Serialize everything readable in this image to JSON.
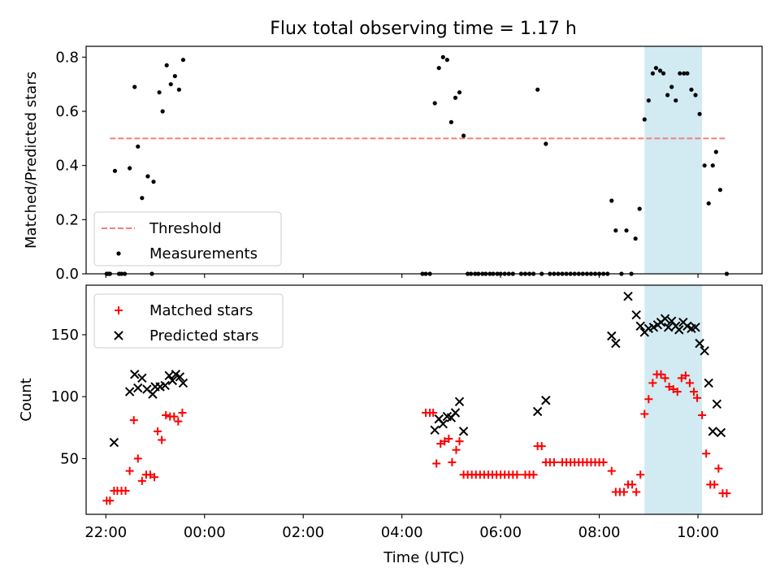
{
  "figure": {
    "title": "Flux total observing time = 1.17 h"
  },
  "chart_data": [
    {
      "type": "scatter",
      "title": "Flux total observing time = 1.17 h",
      "xlabel": "",
      "ylabel": "Matched/Predicted stars",
      "xlim": [
        21.6,
        11.3
      ],
      "ylim": [
        0.0,
        0.84
      ],
      "yticks": [
        0.0,
        0.2,
        0.4,
        0.6,
        0.8
      ],
      "ytick_labels": [
        "0.0",
        "0.2",
        "0.4",
        "0.6",
        "0.8"
      ],
      "legend_position": "lower-left",
      "highlight_span": {
        "x": [
          "08:55",
          "10:05"
        ],
        "color": "#add8e6"
      },
      "series": [
        {
          "name": "Threshold",
          "style": "dashed-line",
          "color": "#f08080",
          "x": [
            "22:05",
            "10:35"
          ],
          "y": [
            0.5,
            0.5
          ]
        },
        {
          "name": "Measurements",
          "style": "dot",
          "color": "#000000",
          "points": [
            [
              "22:01",
              0.0
            ],
            [
              "22:03",
              0.0
            ],
            [
              "22:05",
              0.0
            ],
            [
              "22:11",
              0.38
            ],
            [
              "22:16",
              0.0
            ],
            [
              "22:19",
              0.0
            ],
            [
              "22:23",
              0.0
            ],
            [
              "22:29",
              0.39
            ],
            [
              "22:35",
              0.69
            ],
            [
              "22:39",
              0.47
            ],
            [
              "22:44",
              0.28
            ],
            [
              "22:51",
              0.36
            ],
            [
              "22:56",
              0.0
            ],
            [
              "22:58",
              0.34
            ],
            [
              "23:05",
              0.67
            ],
            [
              "23:09",
              0.6
            ],
            [
              "23:14",
              0.77
            ],
            [
              "23:19",
              0.7
            ],
            [
              "23:24",
              0.73
            ],
            [
              "23:29",
              0.68
            ],
            [
              "23:34",
              0.79
            ],
            [
              "04:25",
              0.0
            ],
            [
              "04:29",
              0.0
            ],
            [
              "04:34",
              0.0
            ],
            [
              "04:40",
              0.63
            ],
            [
              "04:45",
              0.76
            ],
            [
              "04:50",
              0.8
            ],
            [
              "04:55",
              0.79
            ],
            [
              "05:00",
              0.56
            ],
            [
              "05:05",
              0.65
            ],
            [
              "05:10",
              0.67
            ],
            [
              "05:15",
              0.51
            ],
            [
              "05:20",
              0.0
            ],
            [
              "05:24",
              0.0
            ],
            [
              "05:29",
              0.0
            ],
            [
              "05:33",
              0.0
            ],
            [
              "05:38",
              0.0
            ],
            [
              "05:42",
              0.0
            ],
            [
              "05:47",
              0.0
            ],
            [
              "05:51",
              0.0
            ],
            [
              "05:56",
              0.0
            ],
            [
              "06:00",
              0.0
            ],
            [
              "06:05",
              0.0
            ],
            [
              "06:10",
              0.0
            ],
            [
              "06:15",
              0.0
            ],
            [
              "06:25",
              0.0
            ],
            [
              "06:30",
              0.0
            ],
            [
              "06:35",
              0.0
            ],
            [
              "06:40",
              0.0
            ],
            [
              "06:45",
              0.68
            ],
            [
              "06:55",
              0.48
            ],
            [
              "06:50",
              0.0
            ],
            [
              "07:00",
              0.0
            ],
            [
              "07:05",
              0.0
            ],
            [
              "07:10",
              0.0
            ],
            [
              "07:15",
              0.0
            ],
            [
              "07:20",
              0.0
            ],
            [
              "07:25",
              0.0
            ],
            [
              "07:30",
              0.0
            ],
            [
              "07:35",
              0.0
            ],
            [
              "07:40",
              0.0
            ],
            [
              "07:45",
              0.0
            ],
            [
              "07:50",
              0.0
            ],
            [
              "07:55",
              0.0
            ],
            [
              "08:00",
              0.0
            ],
            [
              "08:05",
              0.0
            ],
            [
              "08:10",
              0.0
            ],
            [
              "08:15",
              0.27
            ],
            [
              "08:20",
              0.16
            ],
            [
              "08:27",
              0.0
            ],
            [
              "08:33",
              0.16
            ],
            [
              "08:39",
              0.0
            ],
            [
              "08:44",
              0.13
            ],
            [
              "08:49",
              0.24
            ],
            [
              "08:55",
              0.57
            ],
            [
              "09:00",
              0.64
            ],
            [
              "09:05",
              0.74
            ],
            [
              "09:09",
              0.76
            ],
            [
              "09:14",
              0.75
            ],
            [
              "09:18",
              0.74
            ],
            [
              "09:23",
              0.66
            ],
            [
              "09:28",
              0.69
            ],
            [
              "09:33",
              0.64
            ],
            [
              "09:38",
              0.74
            ],
            [
              "09:43",
              0.74
            ],
            [
              "09:47",
              0.74
            ],
            [
              "09:52",
              0.68
            ],
            [
              "09:57",
              0.66
            ],
            [
              "10:02",
              0.59
            ],
            [
              "10:08",
              0.4
            ],
            [
              "10:13",
              0.26
            ],
            [
              "10:18",
              0.4
            ],
            [
              "10:22",
              0.45
            ],
            [
              "10:27",
              0.31
            ],
            [
              "10:35",
              0.0
            ]
          ]
        }
      ]
    },
    {
      "type": "scatter",
      "title": "",
      "xlabel": "Time (UTC)",
      "ylabel": "Count",
      "xlim": [
        21.6,
        11.3
      ],
      "ylim": [
        5,
        190
      ],
      "yticks": [
        50,
        100,
        150
      ],
      "ytick_labels": [
        "50",
        "100",
        "150"
      ],
      "xticks": [
        "22:00",
        "00:00",
        "02:00",
        "04:00",
        "06:00",
        "08:00",
        "10:00"
      ],
      "legend_position": "upper-left",
      "highlight_span": {
        "x": [
          "08:55",
          "10:05"
        ],
        "color": "#add8e6"
      },
      "series": [
        {
          "name": "Matched stars",
          "style": "plus",
          "color": "#ff0000",
          "points": [
            [
              "22:01",
              16
            ],
            [
              "22:05",
              16
            ],
            [
              "22:10",
              24
            ],
            [
              "22:14",
              24
            ],
            [
              "22:19",
              24
            ],
            [
              "22:24",
              24
            ],
            [
              "22:29",
              40
            ],
            [
              "22:34",
              81
            ],
            [
              "22:39",
              50
            ],
            [
              "22:44",
              32
            ],
            [
              "22:49",
              37
            ],
            [
              "22:54",
              37
            ],
            [
              "22:59",
              35
            ],
            [
              "23:03",
              72
            ],
            [
              "23:08",
              65
            ],
            [
              "23:13",
              85
            ],
            [
              "23:18",
              84
            ],
            [
              "23:23",
              84
            ],
            [
              "23:28",
              80
            ],
            [
              "23:33",
              87
            ],
            [
              "04:29",
              87
            ],
            [
              "04:34",
              87
            ],
            [
              "04:38",
              87
            ],
            [
              "04:42",
              46
            ],
            [
              "04:47",
              62
            ],
            [
              "04:52",
              64
            ],
            [
              "04:57",
              66
            ],
            [
              "05:01",
              47
            ],
            [
              "05:06",
              57
            ],
            [
              "05:10",
              64
            ],
            [
              "05:15",
              37
            ],
            [
              "05:20",
              37
            ],
            [
              "05:25",
              37
            ],
            [
              "05:30",
              37
            ],
            [
              "05:35",
              37
            ],
            [
              "05:40",
              37
            ],
            [
              "05:45",
              37
            ],
            [
              "05:50",
              37
            ],
            [
              "05:55",
              37
            ],
            [
              "06:00",
              37
            ],
            [
              "06:05",
              37
            ],
            [
              "06:10",
              37
            ],
            [
              "06:15",
              37
            ],
            [
              "06:20",
              37
            ],
            [
              "06:30",
              37
            ],
            [
              "06:35",
              37
            ],
            [
              "06:40",
              37
            ],
            [
              "06:45",
              60
            ],
            [
              "06:50",
              60
            ],
            [
              "06:55",
              47
            ],
            [
              "07:00",
              47
            ],
            [
              "07:05",
              47
            ],
            [
              "07:15",
              47
            ],
            [
              "07:20",
              47
            ],
            [
              "07:25",
              47
            ],
            [
              "07:30",
              47
            ],
            [
              "07:35",
              47
            ],
            [
              "07:40",
              47
            ],
            [
              "07:45",
              47
            ],
            [
              "07:50",
              47
            ],
            [
              "07:55",
              47
            ],
            [
              "08:00",
              47
            ],
            [
              "08:05",
              47
            ],
            [
              "08:15",
              40
            ],
            [
              "08:20",
              23
            ],
            [
              "08:25",
              23
            ],
            [
              "08:30",
              23
            ],
            [
              "08:35",
              29
            ],
            [
              "08:40",
              29
            ],
            [
              "08:45",
              23
            ],
            [
              "08:50",
              37
            ],
            [
              "08:55",
              86
            ],
            [
              "09:00",
              98
            ],
            [
              "09:05",
              111
            ],
            [
              "09:10",
              118
            ],
            [
              "09:15",
              118
            ],
            [
              "09:20",
              115
            ],
            [
              "09:25",
              108
            ],
            [
              "09:30",
              106
            ],
            [
              "09:35",
              104
            ],
            [
              "09:40",
              115
            ],
            [
              "09:45",
              117
            ],
            [
              "09:50",
              111
            ],
            [
              "09:55",
              104
            ],
            [
              "09:59",
              99
            ],
            [
              "10:05",
              85
            ],
            [
              "10:10",
              54
            ],
            [
              "10:15",
              29
            ],
            [
              "10:20",
              29
            ],
            [
              "10:25",
              42
            ],
            [
              "10:30",
              22
            ],
            [
              "10:35",
              22
            ]
          ]
        },
        {
          "name": "Predicted stars",
          "style": "x",
          "color": "#000000",
          "points": [
            [
              "22:10",
              63
            ],
            [
              "22:29",
              104
            ],
            [
              "22:35",
              118
            ],
            [
              "22:39",
              107
            ],
            [
              "22:44",
              115
            ],
            [
              "22:50",
              106
            ],
            [
              "22:57",
              102
            ],
            [
              "23:00",
              108
            ],
            [
              "23:06",
              108
            ],
            [
              "23:12",
              109
            ],
            [
              "23:17",
              117
            ],
            [
              "23:21",
              113
            ],
            [
              "23:25",
              118
            ],
            [
              "23:30",
              116
            ],
            [
              "23:34",
              111
            ],
            [
              "04:40",
              73
            ],
            [
              "04:45",
              82
            ],
            [
              "04:50",
              78
            ],
            [
              "04:55",
              84
            ],
            [
              "05:00",
              83
            ],
            [
              "05:05",
              87
            ],
            [
              "05:10",
              96
            ],
            [
              "05:15",
              72
            ],
            [
              "06:45",
              88
            ],
            [
              "06:55",
              97
            ],
            [
              "08:15",
              149
            ],
            [
              "08:20",
              143
            ],
            [
              "08:35",
              181
            ],
            [
              "08:45",
              166
            ],
            [
              "08:50",
              157
            ],
            [
              "08:55",
              152
            ],
            [
              "09:00",
              155
            ],
            [
              "09:06",
              156
            ],
            [
              "09:11",
              158
            ],
            [
              "09:15",
              160
            ],
            [
              "09:20",
              163
            ],
            [
              "09:24",
              156
            ],
            [
              "09:28",
              161
            ],
            [
              "09:33",
              157
            ],
            [
              "09:37",
              154
            ],
            [
              "09:42",
              160
            ],
            [
              "09:47",
              157
            ],
            [
              "09:52",
              155
            ],
            [
              "09:57",
              156
            ],
            [
              "10:02",
              143
            ],
            [
              "10:08",
              137
            ],
            [
              "10:13",
              111
            ],
            [
              "10:18",
              72
            ],
            [
              "10:23",
              94
            ],
            [
              "10:28",
              71
            ]
          ]
        }
      ]
    }
  ]
}
